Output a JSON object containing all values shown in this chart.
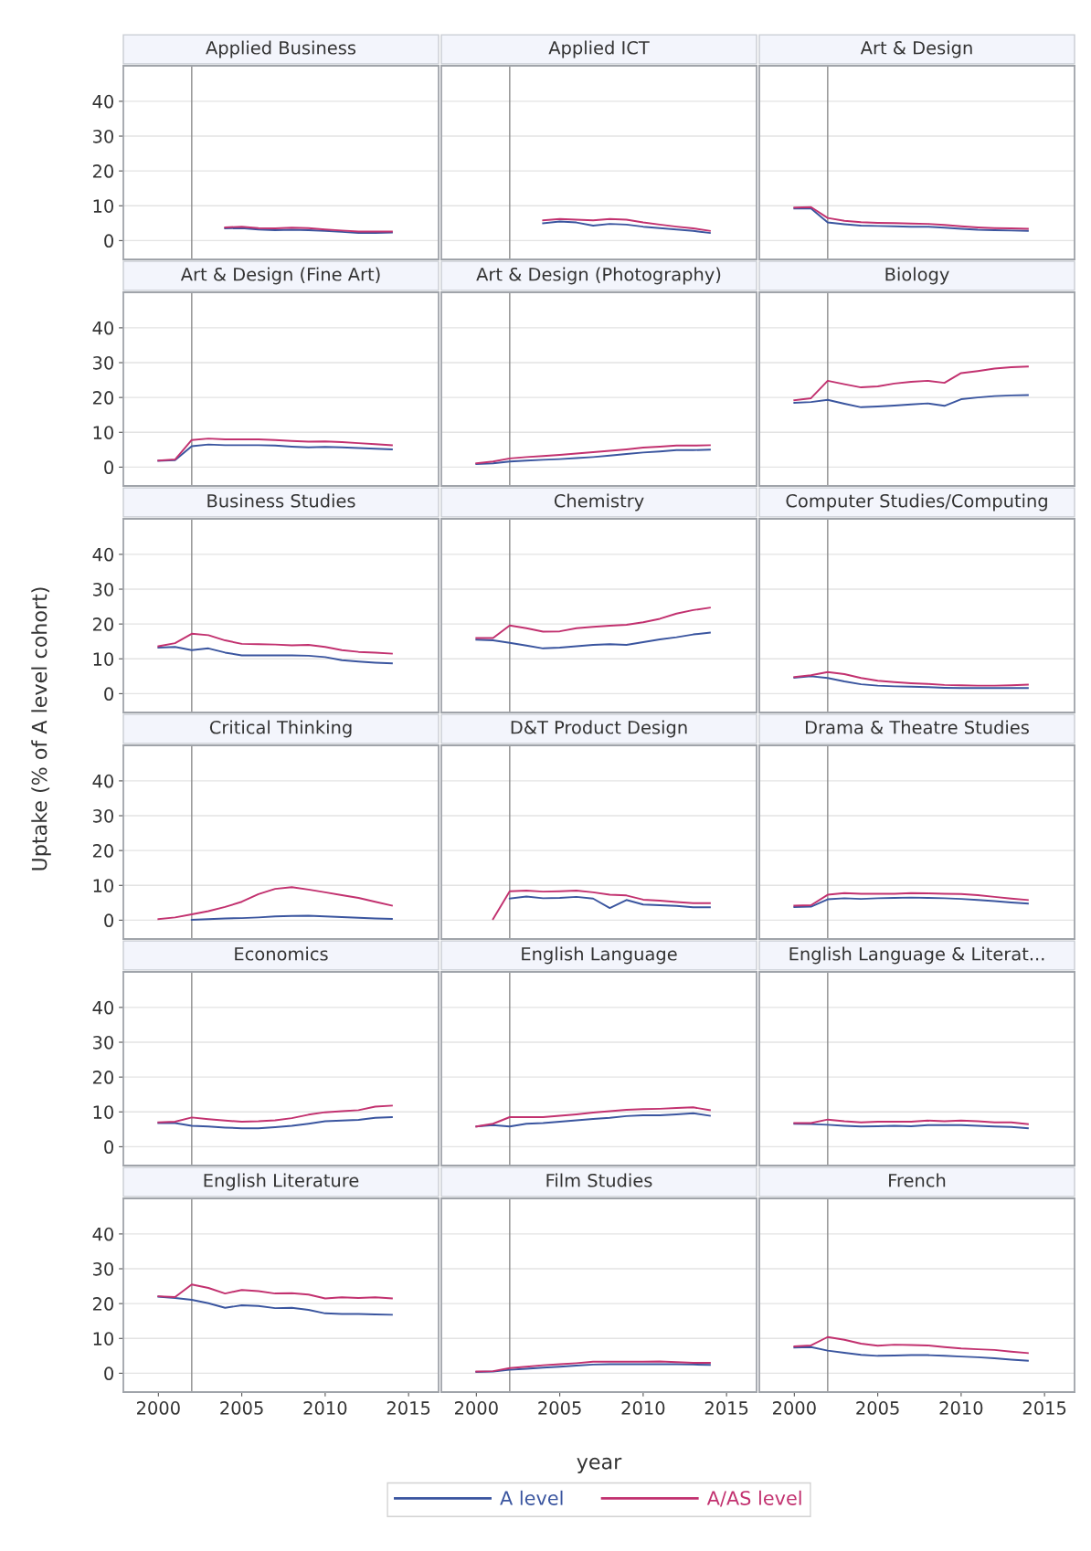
{
  "chart_data": [
    {
      "type": "line",
      "title": "Applied Business",
      "x": [
        2004,
        2005,
        2006,
        2007,
        2008,
        2009,
        2010,
        2011,
        2012,
        2013,
        2014
      ],
      "xlim": [
        1997.9,
        2016.8
      ],
      "ylim": [
        -5.4,
        50.2
      ],
      "xticks": [
        2000,
        2005,
        2010,
        2015
      ],
      "yticks": [
        0,
        10,
        20,
        30,
        40
      ],
      "grid": "y",
      "tick_labels": "y",
      "ref_lines": [
        {
          "axis": "x",
          "value": 2002,
          "color": "#8c8c8c"
        }
      ],
      "series": [
        {
          "color": "#3a559f",
          "values": [
            3.5,
            3.6,
            3.2,
            3.0,
            3.1,
            3.0,
            2.8,
            2.5,
            2.2,
            2.2,
            2.3
          ]
        },
        {
          "color": "#c2316f",
          "values": [
            3.8,
            4.0,
            3.6,
            3.5,
            3.7,
            3.6,
            3.2,
            2.9,
            2.6,
            2.6,
            2.6
          ]
        }
      ]
    },
    {
      "type": "line",
      "title": "Applied ICT",
      "x": [
        2004,
        2005,
        2006,
        2007,
        2008,
        2009,
        2010,
        2011,
        2012,
        2013,
        2014
      ],
      "xlim": [
        1997.9,
        2016.8
      ],
      "ylim": [
        -5.4,
        50.2
      ],
      "xticks": [
        2000,
        2005,
        2010,
        2015
      ],
      "yticks": [
        0,
        10,
        20,
        30,
        40
      ],
      "grid": "y",
      "tick_labels": false,
      "ref_lines": [
        {
          "axis": "x",
          "value": 2002,
          "color": "#8c8c8c"
        }
      ],
      "series": [
        {
          "color": "#3a559f",
          "values": [
            5.0,
            5.5,
            5.2,
            4.3,
            4.8,
            4.6,
            4.0,
            3.6,
            3.2,
            2.8,
            2.2
          ]
        },
        {
          "color": "#c2316f",
          "values": [
            5.8,
            6.2,
            6.0,
            5.8,
            6.2,
            6.0,
            5.2,
            4.6,
            4.0,
            3.5,
            2.8
          ]
        }
      ]
    },
    {
      "type": "line",
      "title": "Art & Design",
      "x": [
        2000,
        2001,
        2002,
        2003,
        2004,
        2005,
        2006,
        2007,
        2008,
        2009,
        2010,
        2011,
        2012,
        2013,
        2014
      ],
      "xlim": [
        1997.9,
        2016.8
      ],
      "ylim": [
        -5.4,
        50.2
      ],
      "xticks": [
        2000,
        2005,
        2010,
        2015
      ],
      "yticks": [
        0,
        10,
        20,
        30,
        40
      ],
      "grid": "y",
      "tick_labels": false,
      "ref_lines": [
        {
          "axis": "x",
          "value": 2002,
          "color": "#8c8c8c"
        }
      ],
      "series": [
        {
          "color": "#3a559f",
          "values": [
            9.2,
            9.2,
            5.2,
            4.7,
            4.3,
            4.2,
            4.1,
            4.0,
            4.0,
            3.7,
            3.4,
            3.1,
            3.0,
            2.9,
            2.8
          ]
        },
        {
          "color": "#c2316f",
          "values": [
            9.5,
            9.6,
            6.5,
            5.7,
            5.3,
            5.1,
            5.0,
            4.9,
            4.8,
            4.5,
            4.1,
            3.8,
            3.6,
            3.5,
            3.4
          ]
        }
      ]
    },
    {
      "type": "line",
      "title": "Art & Design (Fine Art)",
      "x": [
        2000,
        2001,
        2002,
        2003,
        2004,
        2005,
        2006,
        2007,
        2008,
        2009,
        2010,
        2011,
        2012,
        2013,
        2014
      ],
      "xlim": [
        1997.9,
        2016.8
      ],
      "ylim": [
        -5.4,
        50.2
      ],
      "xticks": [
        2000,
        2005,
        2010,
        2015
      ],
      "yticks": [
        0,
        10,
        20,
        30,
        40
      ],
      "grid": "y",
      "tick_labels": "y",
      "ref_lines": [
        {
          "axis": "x",
          "value": 2002,
          "color": "#8c8c8c"
        }
      ],
      "series": [
        {
          "color": "#3a559f",
          "values": [
            1.8,
            2.0,
            6.0,
            6.5,
            6.3,
            6.3,
            6.3,
            6.2,
            5.9,
            5.7,
            5.8,
            5.7,
            5.5,
            5.3,
            5.1
          ]
        },
        {
          "color": "#c2316f",
          "values": [
            1.9,
            2.2,
            7.8,
            8.2,
            8.0,
            8.0,
            8.0,
            7.8,
            7.5,
            7.3,
            7.4,
            7.2,
            6.9,
            6.6,
            6.3
          ]
        }
      ]
    },
    {
      "type": "line",
      "title": "Art & Design (Photography)",
      "x": [
        2000,
        2001,
        2002,
        2003,
        2004,
        2005,
        2006,
        2007,
        2008,
        2009,
        2010,
        2011,
        2012,
        2013,
        2014
      ],
      "xlim": [
        1997.9,
        2016.8
      ],
      "ylim": [
        -5.4,
        50.2
      ],
      "xticks": [
        2000,
        2005,
        2010,
        2015
      ],
      "yticks": [
        0,
        10,
        20,
        30,
        40
      ],
      "grid": "y",
      "tick_labels": false,
      "ref_lines": [
        {
          "axis": "x",
          "value": 2002,
          "color": "#8c8c8c"
        }
      ],
      "series": [
        {
          "color": "#3a559f",
          "values": [
            0.9,
            1.1,
            1.6,
            1.9,
            2.1,
            2.3,
            2.6,
            2.9,
            3.3,
            3.8,
            4.2,
            4.5,
            4.9,
            4.9,
            5.0
          ]
        },
        {
          "color": "#c2316f",
          "values": [
            1.1,
            1.6,
            2.5,
            2.9,
            3.2,
            3.5,
            3.9,
            4.3,
            4.7,
            5.1,
            5.6,
            5.9,
            6.2,
            6.2,
            6.3
          ]
        }
      ]
    },
    {
      "type": "line",
      "title": "Biology",
      "x": [
        2000,
        2001,
        2002,
        2003,
        2004,
        2005,
        2006,
        2007,
        2008,
        2009,
        2010,
        2011,
        2012,
        2013,
        2014
      ],
      "xlim": [
        1997.9,
        2016.8
      ],
      "ylim": [
        -5.4,
        50.2
      ],
      "xticks": [
        2000,
        2005,
        2010,
        2015
      ],
      "yticks": [
        0,
        10,
        20,
        30,
        40
      ],
      "grid": "y",
      "tick_labels": false,
      "ref_lines": [
        {
          "axis": "x",
          "value": 2002,
          "color": "#8c8c8c"
        }
      ],
      "series": [
        {
          "color": "#3a559f",
          "values": [
            18.5,
            18.7,
            19.3,
            18.2,
            17.2,
            17.4,
            17.7,
            18.0,
            18.3,
            17.6,
            19.5,
            20.0,
            20.4,
            20.6,
            20.7
          ]
        },
        {
          "color": "#c2316f",
          "values": [
            19.2,
            19.8,
            24.8,
            23.8,
            22.9,
            23.2,
            24.0,
            24.5,
            24.8,
            24.2,
            27.0,
            27.6,
            28.3,
            28.7,
            28.9
          ]
        }
      ]
    },
    {
      "type": "line",
      "title": "Business Studies",
      "ylabel": "Uptake (% of A level cohort)",
      "x": [
        2000,
        2001,
        2002,
        2003,
        2004,
        2005,
        2006,
        2007,
        2008,
        2009,
        2010,
        2011,
        2012,
        2013,
        2014
      ],
      "xlim": [
        1997.9,
        2016.8
      ],
      "ylim": [
        -5.4,
        50.2
      ],
      "xticks": [
        2000,
        2005,
        2010,
        2015
      ],
      "yticks": [
        0,
        10,
        20,
        30,
        40
      ],
      "grid": "y",
      "tick_labels": "y",
      "ref_lines": [
        {
          "axis": "x",
          "value": 2002,
          "color": "#8c8c8c"
        }
      ],
      "series": [
        {
          "color": "#3a559f",
          "values": [
            13.2,
            13.4,
            12.5,
            13.0,
            11.8,
            11.0,
            11.0,
            11.0,
            11.0,
            10.9,
            10.5,
            9.6,
            9.2,
            8.9,
            8.7
          ]
        },
        {
          "color": "#c2316f",
          "values": [
            13.6,
            14.5,
            17.2,
            16.8,
            15.3,
            14.3,
            14.2,
            14.1,
            13.9,
            14.0,
            13.4,
            12.5,
            12.0,
            11.8,
            11.5
          ]
        }
      ]
    },
    {
      "type": "line",
      "title": "Chemistry",
      "x": [
        2000,
        2001,
        2002,
        2003,
        2004,
        2005,
        2006,
        2007,
        2008,
        2009,
        2010,
        2011,
        2012,
        2013,
        2014
      ],
      "xlim": [
        1997.9,
        2016.8
      ],
      "ylim": [
        -5.4,
        50.2
      ],
      "xticks": [
        2000,
        2005,
        2010,
        2015
      ],
      "yticks": [
        0,
        10,
        20,
        30,
        40
      ],
      "grid": "y",
      "tick_labels": false,
      "ref_lines": [
        {
          "axis": "x",
          "value": 2002,
          "color": "#8c8c8c"
        }
      ],
      "series": [
        {
          "color": "#3a559f",
          "values": [
            15.5,
            15.3,
            14.6,
            13.8,
            13.0,
            13.2,
            13.6,
            14.0,
            14.2,
            14.0,
            14.8,
            15.6,
            16.2,
            17.0,
            17.5
          ]
        },
        {
          "color": "#c2316f",
          "values": [
            16.0,
            16.0,
            19.6,
            18.8,
            17.8,
            17.9,
            18.8,
            19.2,
            19.5,
            19.8,
            20.5,
            21.5,
            23.0,
            24.0,
            24.7
          ]
        }
      ]
    },
    {
      "type": "line",
      "title": "Computer Studies/Computing",
      "x": [
        2000,
        2001,
        2002,
        2003,
        2004,
        2005,
        2006,
        2007,
        2008,
        2009,
        2010,
        2011,
        2012,
        2013,
        2014
      ],
      "xlim": [
        1997.9,
        2016.8
      ],
      "ylim": [
        -5.4,
        50.2
      ],
      "xticks": [
        2000,
        2005,
        2010,
        2015
      ],
      "yticks": [
        0,
        10,
        20,
        30,
        40
      ],
      "grid": "y",
      "tick_labels": false,
      "ref_lines": [
        {
          "axis": "x",
          "value": 2002,
          "color": "#8c8c8c"
        }
      ],
      "series": [
        {
          "color": "#3a559f",
          "values": [
            4.6,
            5.0,
            4.5,
            3.5,
            2.7,
            2.3,
            2.1,
            2.0,
            1.9,
            1.7,
            1.6,
            1.6,
            1.6,
            1.6,
            1.6
          ]
        },
        {
          "color": "#c2316f",
          "values": [
            4.8,
            5.3,
            6.2,
            5.6,
            4.5,
            3.7,
            3.3,
            3.0,
            2.8,
            2.5,
            2.4,
            2.3,
            2.3,
            2.4,
            2.6
          ]
        }
      ]
    },
    {
      "type": "line",
      "title": "Critical Thinking",
      "x": [
        2000,
        2001,
        2002,
        2003,
        2004,
        2005,
        2006,
        2007,
        2008,
        2009,
        2010,
        2011,
        2012,
        2013,
        2014
      ],
      "xlim": [
        1997.9,
        2016.8
      ],
      "ylim": [
        -5.4,
        50.2
      ],
      "xticks": [
        2000,
        2005,
        2010,
        2015
      ],
      "yticks": [
        0,
        10,
        20,
        30,
        40
      ],
      "grid": "y",
      "tick_labels": "y",
      "ref_lines": [
        {
          "axis": "x",
          "value": 2002,
          "color": "#8c8c8c"
        }
      ],
      "series": [
        {
          "color": "#3a559f",
          "values": [
            null,
            null,
            0.1,
            0.3,
            0.5,
            0.6,
            0.8,
            1.1,
            1.2,
            1.3,
            1.1,
            0.9,
            0.7,
            0.5,
            0.4
          ]
        },
        {
          "color": "#c2316f",
          "values": [
            0.3,
            0.8,
            1.7,
            2.6,
            3.8,
            5.3,
            7.5,
            9.0,
            9.5,
            8.8,
            8.0,
            7.2,
            6.4,
            5.3,
            4.2
          ]
        }
      ]
    },
    {
      "type": "line",
      "title": "D&T Product Design",
      "x": [
        2001,
        2002,
        2003,
        2004,
        2005,
        2006,
        2007,
        2008,
        2009,
        2010,
        2011,
        2012,
        2013,
        2014
      ],
      "xlim": [
        1997.9,
        2016.8
      ],
      "ylim": [
        -5.4,
        50.2
      ],
      "xticks": [
        2000,
        2005,
        2010,
        2015
      ],
      "yticks": [
        0,
        10,
        20,
        30,
        40
      ],
      "grid": "y",
      "tick_labels": false,
      "ref_lines": [
        {
          "axis": "x",
          "value": 2002,
          "color": "#8c8c8c"
        }
      ],
      "series": [
        {
          "color": "#3a559f",
          "values": [
            null,
            6.2,
            6.8,
            6.3,
            6.4,
            6.7,
            6.2,
            3.5,
            5.8,
            4.5,
            4.3,
            4.1,
            3.7,
            3.7
          ]
        },
        {
          "color": "#c2316f",
          "values": [
            0.3,
            8.3,
            8.5,
            8.2,
            8.3,
            8.5,
            8.0,
            7.3,
            7.1,
            5.9,
            5.6,
            5.2,
            4.9,
            4.9
          ]
        }
      ]
    },
    {
      "type": "line",
      "title": "Drama & Theatre Studies",
      "x": [
        2000,
        2001,
        2002,
        2003,
        2004,
        2005,
        2006,
        2007,
        2008,
        2009,
        2010,
        2011,
        2012,
        2013,
        2014
      ],
      "xlim": [
        1997.9,
        2016.8
      ],
      "ylim": [
        -5.4,
        50.2
      ],
      "xticks": [
        2000,
        2005,
        2010,
        2015
      ],
      "yticks": [
        0,
        10,
        20,
        30,
        40
      ],
      "grid": "y",
      "tick_labels": false,
      "ref_lines": [
        {
          "axis": "x",
          "value": 2002,
          "color": "#8c8c8c"
        }
      ],
      "series": [
        {
          "color": "#3a559f",
          "values": [
            3.8,
            3.9,
            6.0,
            6.3,
            6.1,
            6.3,
            6.4,
            6.5,
            6.4,
            6.3,
            6.1,
            5.8,
            5.5,
            5.1,
            4.8
          ]
        },
        {
          "color": "#c2316f",
          "values": [
            4.2,
            4.3,
            7.3,
            7.8,
            7.6,
            7.6,
            7.6,
            7.8,
            7.7,
            7.6,
            7.5,
            7.2,
            6.7,
            6.2,
            5.8
          ]
        }
      ]
    },
    {
      "type": "line",
      "title": "Economics",
      "x": [
        2000,
        2001,
        2002,
        2003,
        2004,
        2005,
        2006,
        2007,
        2008,
        2009,
        2010,
        2011,
        2012,
        2013,
        2014
      ],
      "xlim": [
        1997.9,
        2016.8
      ],
      "ylim": [
        -5.4,
        50.2
      ],
      "xticks": [
        2000,
        2005,
        2010,
        2015
      ],
      "yticks": [
        0,
        10,
        20,
        30,
        40
      ],
      "grid": "y",
      "tick_labels": "y",
      "ref_lines": [
        {
          "axis": "x",
          "value": 2002,
          "color": "#8c8c8c"
        }
      ],
      "series": [
        {
          "color": "#3a559f",
          "values": [
            6.8,
            6.8,
            6.0,
            5.8,
            5.5,
            5.3,
            5.3,
            5.6,
            6.0,
            6.6,
            7.3,
            7.5,
            7.7,
            8.3,
            8.5
          ]
        },
        {
          "color": "#c2316f",
          "values": [
            7.0,
            7.2,
            8.4,
            7.9,
            7.5,
            7.2,
            7.3,
            7.6,
            8.2,
            9.2,
            9.9,
            10.2,
            10.5,
            11.5,
            11.8
          ]
        }
      ]
    },
    {
      "type": "line",
      "title": "English Language",
      "x": [
        2000,
        2001,
        2002,
        2003,
        2004,
        2005,
        2006,
        2007,
        2008,
        2009,
        2010,
        2011,
        2012,
        2013,
        2014
      ],
      "xlim": [
        1997.9,
        2016.8
      ],
      "ylim": [
        -5.4,
        50.2
      ],
      "xticks": [
        2000,
        2005,
        2010,
        2015
      ],
      "yticks": [
        0,
        10,
        20,
        30,
        40
      ],
      "grid": "y",
      "tick_labels": false,
      "ref_lines": [
        {
          "axis": "x",
          "value": 2002,
          "color": "#8c8c8c"
        }
      ],
      "series": [
        {
          "color": "#3a559f",
          "values": [
            5.8,
            6.2,
            5.8,
            6.6,
            6.8,
            7.2,
            7.6,
            8.0,
            8.3,
            8.8,
            9.0,
            9.0,
            9.3,
            9.6,
            8.9
          ]
        },
        {
          "color": "#c2316f",
          "values": [
            5.8,
            6.6,
            8.5,
            8.5,
            8.5,
            8.9,
            9.3,
            9.8,
            10.2,
            10.6,
            10.8,
            10.9,
            11.1,
            11.3,
            10.5
          ]
        }
      ]
    },
    {
      "type": "line",
      "title": "English Language & Literat...",
      "x": [
        2000,
        2001,
        2002,
        2003,
        2004,
        2005,
        2006,
        2007,
        2008,
        2009,
        2010,
        2011,
        2012,
        2013,
        2014
      ],
      "xlim": [
        1997.9,
        2016.8
      ],
      "ylim": [
        -5.4,
        50.2
      ],
      "xticks": [
        2000,
        2005,
        2010,
        2015
      ],
      "yticks": [
        0,
        10,
        20,
        30,
        40
      ],
      "grid": "y",
      "tick_labels": false,
      "ref_lines": [
        {
          "axis": "x",
          "value": 2002,
          "color": "#8c8c8c"
        }
      ],
      "series": [
        {
          "color": "#3a559f",
          "values": [
            6.6,
            6.5,
            6.3,
            6.0,
            5.8,
            5.9,
            6.0,
            5.9,
            6.2,
            6.2,
            6.2,
            6.0,
            5.8,
            5.7,
            5.3
          ]
        },
        {
          "color": "#c2316f",
          "values": [
            6.8,
            6.8,
            7.8,
            7.3,
            7.0,
            7.2,
            7.2,
            7.2,
            7.5,
            7.3,
            7.5,
            7.3,
            7.0,
            7.0,
            6.5
          ]
        }
      ]
    },
    {
      "type": "line",
      "title": "English Literature",
      "x": [
        2000,
        2001,
        2002,
        2003,
        2004,
        2005,
        2006,
        2007,
        2008,
        2009,
        2010,
        2011,
        2012,
        2013,
        2014
      ],
      "xlim": [
        1997.9,
        2016.8
      ],
      "ylim": [
        -5.4,
        50.2
      ],
      "xticks": [
        2000,
        2005,
        2010,
        2015
      ],
      "yticks": [
        0,
        10,
        20,
        30,
        40
      ],
      "grid": "y",
      "ref_lines": [
        {
          "axis": "x",
          "value": 2002,
          "color": "#8c8c8c"
        }
      ],
      "series": [
        {
          "color": "#3a559f",
          "values": [
            22.0,
            21.6,
            21.1,
            20.1,
            18.8,
            19.5,
            19.3,
            18.7,
            18.8,
            18.2,
            17.2,
            17.0,
            17.0,
            16.9,
            16.8
          ]
        },
        {
          "color": "#c2316f",
          "values": [
            22.1,
            21.9,
            25.5,
            24.5,
            22.9,
            23.9,
            23.6,
            22.9,
            23.0,
            22.6,
            21.5,
            21.8,
            21.6,
            21.8,
            21.5
          ]
        }
      ]
    },
    {
      "type": "line",
      "title": "Film Studies",
      "xlabel": "year",
      "legend": "bottom",
      "x": [
        2000,
        2001,
        2002,
        2003,
        2004,
        2005,
        2006,
        2007,
        2008,
        2009,
        2010,
        2011,
        2012,
        2013,
        2014
      ],
      "xlim": [
        1997.9,
        2016.8
      ],
      "ylim": [
        -5.4,
        50.2
      ],
      "xticks": [
        2000,
        2005,
        2010,
        2015
      ],
      "yticks": [
        0,
        10,
        20,
        30,
        40
      ],
      "grid": "y",
      "tick_labels": "x",
      "ref_lines": [
        {
          "axis": "x",
          "value": 2002,
          "color": "#8c8c8c"
        }
      ],
      "series": [
        {
          "name": "A level",
          "color": "#3a559f",
          "values": [
            0.4,
            0.5,
            1.0,
            1.3,
            1.6,
            1.9,
            2.2,
            2.5,
            2.6,
            2.6,
            2.6,
            2.6,
            2.6,
            2.5,
            2.4
          ]
        },
        {
          "name": "A/AS level",
          "color": "#c2316f",
          "values": [
            0.5,
            0.6,
            1.5,
            1.9,
            2.3,
            2.6,
            2.9,
            3.3,
            3.3,
            3.3,
            3.3,
            3.4,
            3.2,
            3.0,
            3.0
          ]
        }
      ]
    },
    {
      "type": "line",
      "title": "French",
      "x": [
        2000,
        2001,
        2002,
        2003,
        2004,
        2005,
        2006,
        2007,
        2008,
        2009,
        2010,
        2011,
        2012,
        2013,
        2014
      ],
      "xlim": [
        1997.9,
        2016.8
      ],
      "ylim": [
        -5.4,
        50.2
      ],
      "xticks": [
        2000,
        2005,
        2010,
        2015
      ],
      "yticks": [
        0,
        10,
        20,
        30,
        40
      ],
      "grid": "y",
      "tick_labels": "x",
      "ref_lines": [
        {
          "axis": "x",
          "value": 2002,
          "color": "#8c8c8c"
        }
      ],
      "series": [
        {
          "color": "#3a559f",
          "values": [
            7.4,
            7.5,
            6.5,
            5.9,
            5.3,
            5.0,
            5.1,
            5.2,
            5.2,
            5.0,
            4.8,
            4.6,
            4.3,
            3.9,
            3.6
          ]
        },
        {
          "color": "#c2316f",
          "values": [
            7.7,
            8.0,
            10.4,
            9.6,
            8.5,
            7.9,
            8.2,
            8.1,
            8.0,
            7.5,
            7.1,
            6.9,
            6.7,
            6.2,
            5.8
          ]
        }
      ]
    }
  ]
}
